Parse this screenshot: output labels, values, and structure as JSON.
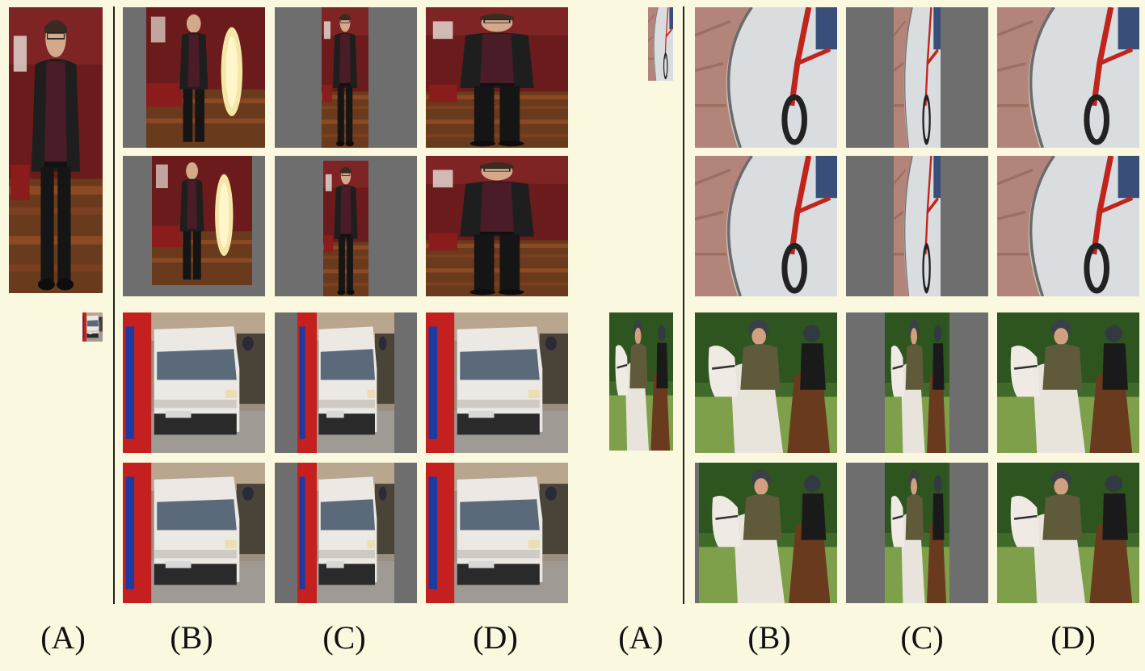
{
  "column_labels": [
    "(A)",
    "(B)",
    "(C)",
    "(D)",
    "(A)",
    "(B)",
    "(C)",
    "(D)"
  ],
  "colors": {
    "background": "#fbf8e0",
    "padding_gray": "#6e6e6e",
    "divider": "#222222"
  },
  "panels": [
    {
      "subject": "man-in-living-room",
      "rows": 2
    },
    {
      "subject": "white-van-street",
      "rows": 2
    },
    {
      "subject": "bicycle-on-path",
      "rows": 2
    },
    {
      "subject": "horse-riders",
      "rows": 2
    }
  ]
}
